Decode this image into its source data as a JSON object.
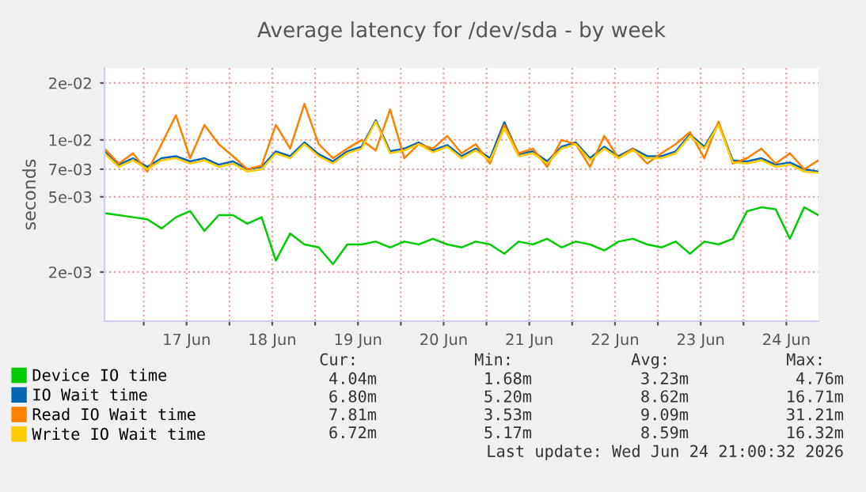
{
  "chart_data": {
    "type": "line",
    "title": "Average latency for /dev/sda - by week",
    "ylabel": "seconds",
    "log": "y",
    "x": [
      "2026-06-16T13:00",
      "2026-06-16T17:00",
      "2026-06-16T21:00",
      "2026-06-17T01:00",
      "2026-06-17T05:00",
      "2026-06-17T09:00",
      "2026-06-17T13:00",
      "2026-06-17T17:00",
      "2026-06-17T21:00",
      "2026-06-18T01:00",
      "2026-06-18T05:00",
      "2026-06-18T09:00",
      "2026-06-18T13:00",
      "2026-06-18T17:00",
      "2026-06-18T21:00",
      "2026-06-19T01:00",
      "2026-06-19T05:00",
      "2026-06-19T09:00",
      "2026-06-19T13:00",
      "2026-06-19T17:00",
      "2026-06-19T21:00",
      "2026-06-20T01:00",
      "2026-06-20T05:00",
      "2026-06-20T09:00",
      "2026-06-20T13:00",
      "2026-06-20T17:00",
      "2026-06-20T21:00",
      "2026-06-21T01:00",
      "2026-06-21T05:00",
      "2026-06-21T09:00",
      "2026-06-21T13:00",
      "2026-06-21T17:00",
      "2026-06-21T21:00",
      "2026-06-22T01:00",
      "2026-06-22T05:00",
      "2026-06-22T09:00",
      "2026-06-22T13:00",
      "2026-06-22T17:00",
      "2026-06-22T21:00",
      "2026-06-23T01:00",
      "2026-06-23T05:00",
      "2026-06-23T09:00",
      "2026-06-23T13:00",
      "2026-06-23T17:00",
      "2026-06-23T21:00",
      "2026-06-24T01:00",
      "2026-06-24T05:00",
      "2026-06-24T09:00",
      "2026-06-24T13:00",
      "2026-06-24T17:00",
      "2026-06-24T21:00"
    ],
    "series": [
      {
        "name": "Device IO time",
        "color": "#00cc00",
        "values": [
          0.0041,
          0.004,
          0.0039,
          0.0038,
          0.0034,
          0.0039,
          0.0042,
          0.0033,
          0.004,
          0.004,
          0.0036,
          0.0039,
          0.0023,
          0.0032,
          0.0028,
          0.0027,
          0.0022,
          0.0028,
          0.0028,
          0.0029,
          0.0027,
          0.0029,
          0.0028,
          0.003,
          0.0028,
          0.0027,
          0.0029,
          0.0028,
          0.0025,
          0.0029,
          0.0028,
          0.003,
          0.0027,
          0.0029,
          0.0028,
          0.0026,
          0.0029,
          0.003,
          0.0028,
          0.0027,
          0.0029,
          0.0025,
          0.0029,
          0.0028,
          0.003,
          0.0042,
          0.0044,
          0.0043,
          0.003,
          0.0044,
          0.004
        ]
      },
      {
        "name": "IO Wait time",
        "color": "#0066b3",
        "values": [
          0.0087,
          0.0074,
          0.008,
          0.0072,
          0.008,
          0.0082,
          0.0077,
          0.008,
          0.0074,
          0.0077,
          0.007,
          0.0072,
          0.0087,
          0.0082,
          0.0097,
          0.0084,
          0.0077,
          0.0087,
          0.0092,
          0.0127,
          0.0087,
          0.009,
          0.0097,
          0.0088,
          0.0094,
          0.0082,
          0.009,
          0.008,
          0.0124,
          0.0084,
          0.0087,
          0.0077,
          0.0092,
          0.0097,
          0.008,
          0.0092,
          0.0082,
          0.009,
          0.0082,
          0.0082,
          0.0087,
          0.0107,
          0.0092,
          0.0122,
          0.0078,
          0.0077,
          0.008,
          0.0074,
          0.0076,
          0.007,
          0.0068
        ]
      },
      {
        "name": "Read IO Wait time",
        "color": "#ff8000",
        "values": [
          0.009,
          0.0075,
          0.0085,
          0.0068,
          0.0095,
          0.0135,
          0.008,
          0.012,
          0.0095,
          0.0082,
          0.007,
          0.0073,
          0.012,
          0.009,
          0.0155,
          0.0095,
          0.008,
          0.009,
          0.01,
          0.0088,
          0.0145,
          0.008,
          0.0095,
          0.009,
          0.0105,
          0.0085,
          0.0095,
          0.0075,
          0.012,
          0.0085,
          0.009,
          0.0072,
          0.01,
          0.0095,
          0.0072,
          0.0105,
          0.008,
          0.009,
          0.0075,
          0.0085,
          0.0095,
          0.011,
          0.008,
          0.0125,
          0.0075,
          0.008,
          0.009,
          0.0075,
          0.0085,
          0.007,
          0.0078
        ]
      },
      {
        "name": "Write IO Wait time",
        "color": "#ffcc00",
        "values": [
          0.0085,
          0.0072,
          0.0078,
          0.007,
          0.0078,
          0.008,
          0.0075,
          0.0078,
          0.0072,
          0.0075,
          0.0068,
          0.007,
          0.0085,
          0.008,
          0.0095,
          0.0082,
          0.0075,
          0.0085,
          0.009,
          0.0125,
          0.0085,
          0.0088,
          0.0095,
          0.0086,
          0.0092,
          0.008,
          0.0088,
          0.0078,
          0.0115,
          0.0082,
          0.0085,
          0.0075,
          0.009,
          0.0095,
          0.0078,
          0.009,
          0.008,
          0.0088,
          0.008,
          0.008,
          0.0085,
          0.0105,
          0.009,
          0.012,
          0.0076,
          0.0075,
          0.0078,
          0.0072,
          0.0074,
          0.0068,
          0.0067
        ]
      }
    ],
    "xlim": [
      "2026-06-16T13:00",
      "2026-06-24T21:00"
    ],
    "xticks": [
      {
        "value": "2026-06-17T00:00",
        "label": null
      },
      {
        "value": "2026-06-17T12:00",
        "label": "17 Jun"
      },
      {
        "value": "2026-06-18T00:00",
        "label": null
      },
      {
        "value": "2026-06-18T12:00",
        "label": "18 Jun"
      },
      {
        "value": "2026-06-19T00:00",
        "label": null
      },
      {
        "value": "2026-06-19T12:00",
        "label": "19 Jun"
      },
      {
        "value": "2026-06-20T00:00",
        "label": null
      },
      {
        "value": "2026-06-20T12:00",
        "label": "20 Jun"
      },
      {
        "value": "2026-06-21T00:00",
        "label": null
      },
      {
        "value": "2026-06-21T12:00",
        "label": "21 Jun"
      },
      {
        "value": "2026-06-22T00:00",
        "label": null
      },
      {
        "value": "2026-06-22T12:00",
        "label": "22 Jun"
      },
      {
        "value": "2026-06-23T00:00",
        "label": null
      },
      {
        "value": "2026-06-23T12:00",
        "label": "23 Jun"
      },
      {
        "value": "2026-06-24T00:00",
        "label": null
      },
      {
        "value": "2026-06-24T12:00",
        "label": "24 Jun"
      }
    ],
    "ylim": [
      0.0011,
      0.024
    ],
    "yticks": [
      {
        "value": 0.002,
        "label": "2e-03"
      },
      {
        "value": 0.005,
        "label": "5e-03"
      },
      {
        "value": 0.007,
        "label": "7e-03"
      },
      {
        "value": 0.01,
        "label": "1e-02"
      },
      {
        "value": 0.02,
        "label": "2e-02"
      }
    ],
    "grid": true,
    "legend": "bottom",
    "annotations": [
      "Cur:",
      "Min:",
      "Avg:",
      "Max:",
      "4.04m",
      "1.68m",
      "3.23m",
      "4.76m",
      "6.80m",
      "5.20m",
      "8.62m",
      "16.71m",
      "7.81m",
      "3.53m",
      "9.09m",
      "31.21m",
      "6.72m",
      "5.17m",
      "8.59m",
      "16.32m",
      "Last update: Wed Jun 24 21:00:32 2026"
    ]
  }
}
